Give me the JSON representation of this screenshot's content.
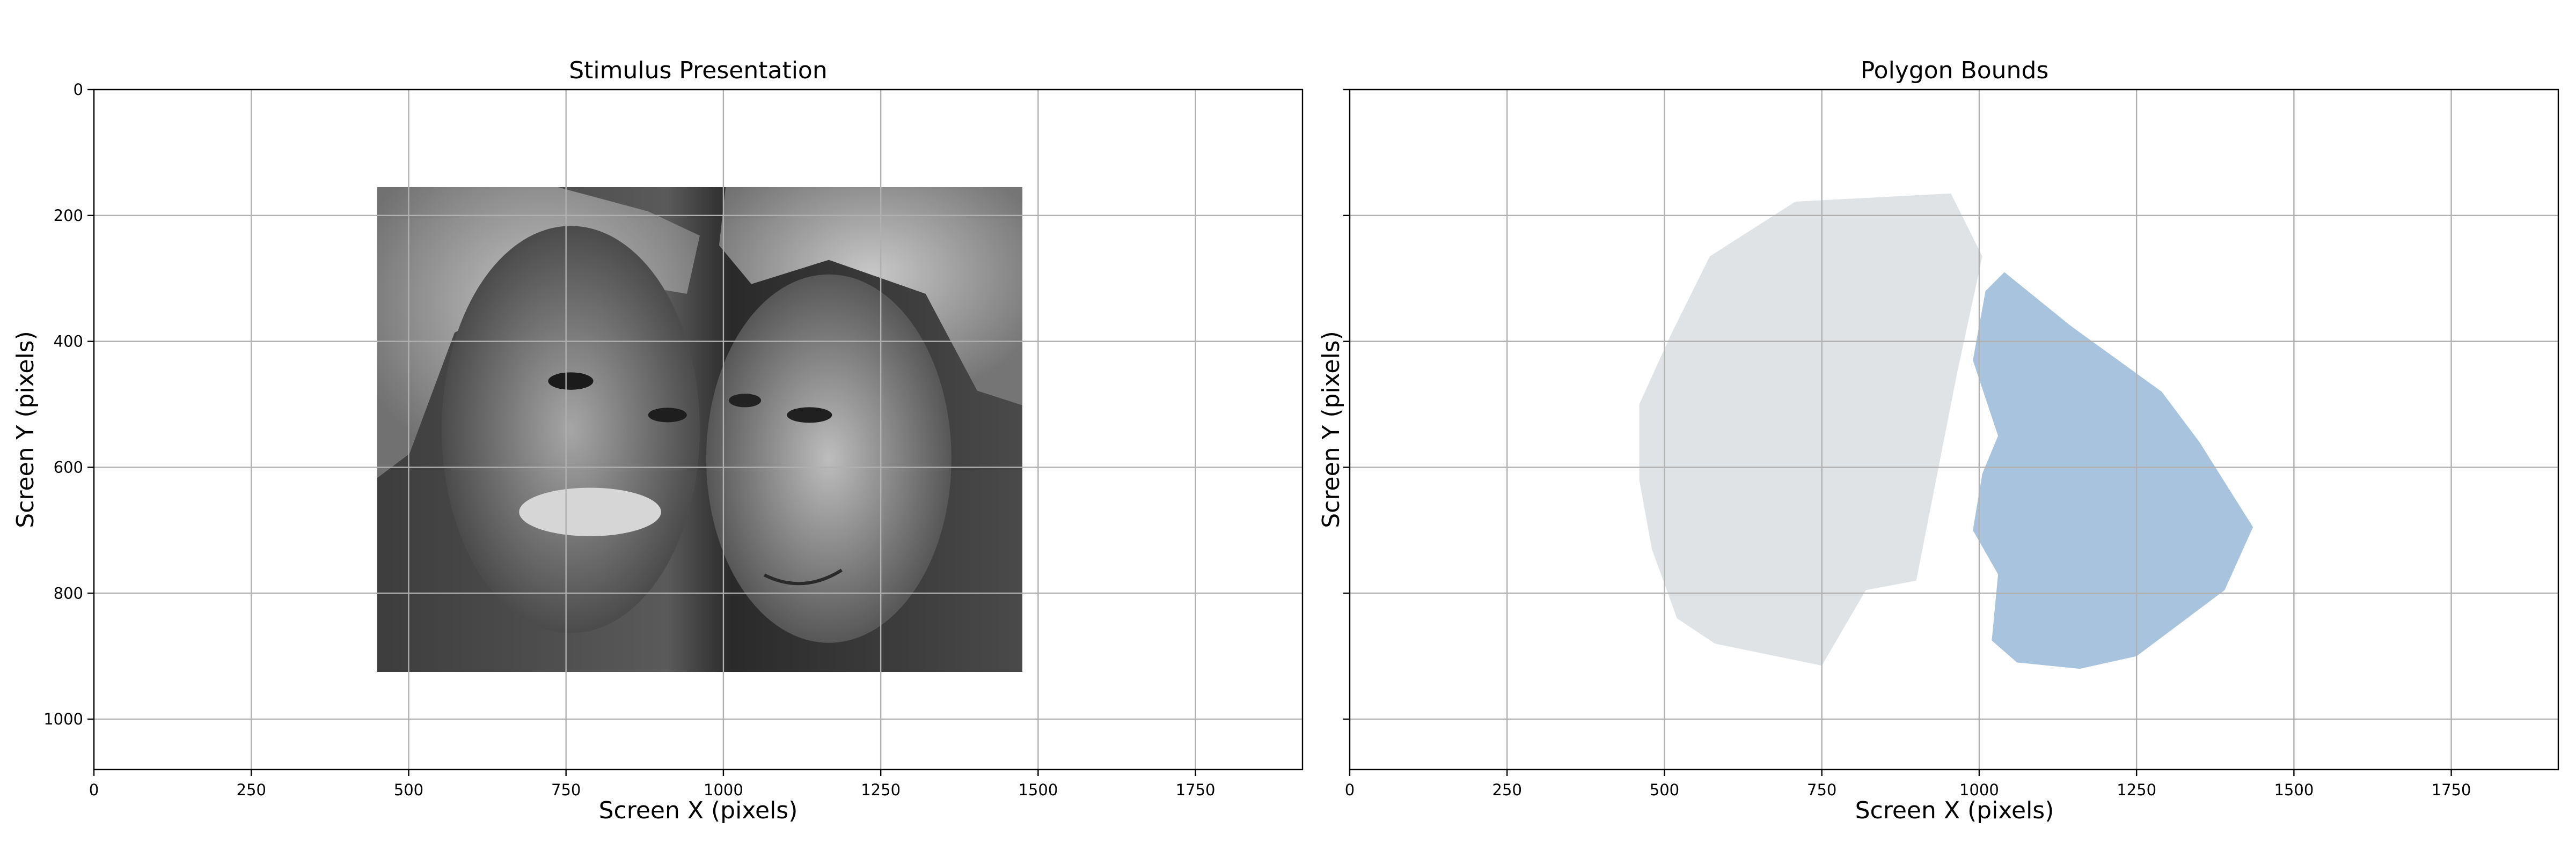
{
  "chart_data": [
    {
      "type": "image",
      "title": "Stimulus Presentation",
      "xlabel": "Screen X (pixels)",
      "ylabel": "Screen Y (pixels)",
      "xlim": [
        0,
        1920
      ],
      "ylim": [
        1080,
        0
      ],
      "xticks": [
        0,
        250,
        500,
        750,
        1000,
        1250,
        1500,
        1750
      ],
      "yticks": [
        0,
        200,
        400,
        600,
        800,
        1000
      ],
      "grid": true,
      "image": {
        "description": "grayscale photograph of an elderly man and woman, foreheads touching",
        "extent": {
          "x": [
            450,
            1475
          ],
          "y": [
            155,
            925
          ]
        }
      }
    },
    {
      "type": "polygon",
      "title": "Polygon Bounds",
      "xlabel": "Screen X (pixels)",
      "ylabel": "Screen Y (pixels)",
      "xlim": [
        0,
        1920
      ],
      "ylim": [
        1080,
        0
      ],
      "xticks": [
        0,
        250,
        500,
        750,
        1000,
        1250,
        1500,
        1750
      ],
      "yticks": [
        0,
        200,
        400,
        600,
        800,
        1000
      ],
      "ytick_labels_shown": false,
      "grid": true,
      "polygons": [
        {
          "color": "#dfe3e6",
          "points": [
            [
              572,
              265
            ],
            [
              708,
              178
            ],
            [
              955,
              165
            ],
            [
              1005,
              265
            ],
            [
              965,
              450
            ],
            [
              900,
              780
            ],
            [
              820,
              795
            ],
            [
              750,
              915
            ],
            [
              580,
              880
            ],
            [
              520,
              840
            ],
            [
              480,
              730
            ],
            [
              460,
              620
            ],
            [
              460,
              500
            ],
            [
              510,
              390
            ]
          ]
        },
        {
          "color": "#a7c3dd",
          "points": [
            [
              1040,
              290
            ],
            [
              1145,
              375
            ],
            [
              1290,
              480
            ],
            [
              1350,
              560
            ],
            [
              1435,
              695
            ],
            [
              1390,
              795
            ],
            [
              1250,
              900
            ],
            [
              1160,
              920
            ],
            [
              1060,
              910
            ],
            [
              1020,
              875
            ],
            [
              1030,
              770
            ],
            [
              990,
              700
            ],
            [
              1005,
              610
            ],
            [
              1030,
              550
            ],
            [
              990,
              430
            ],
            [
              1010,
              320
            ]
          ]
        }
      ]
    }
  ]
}
